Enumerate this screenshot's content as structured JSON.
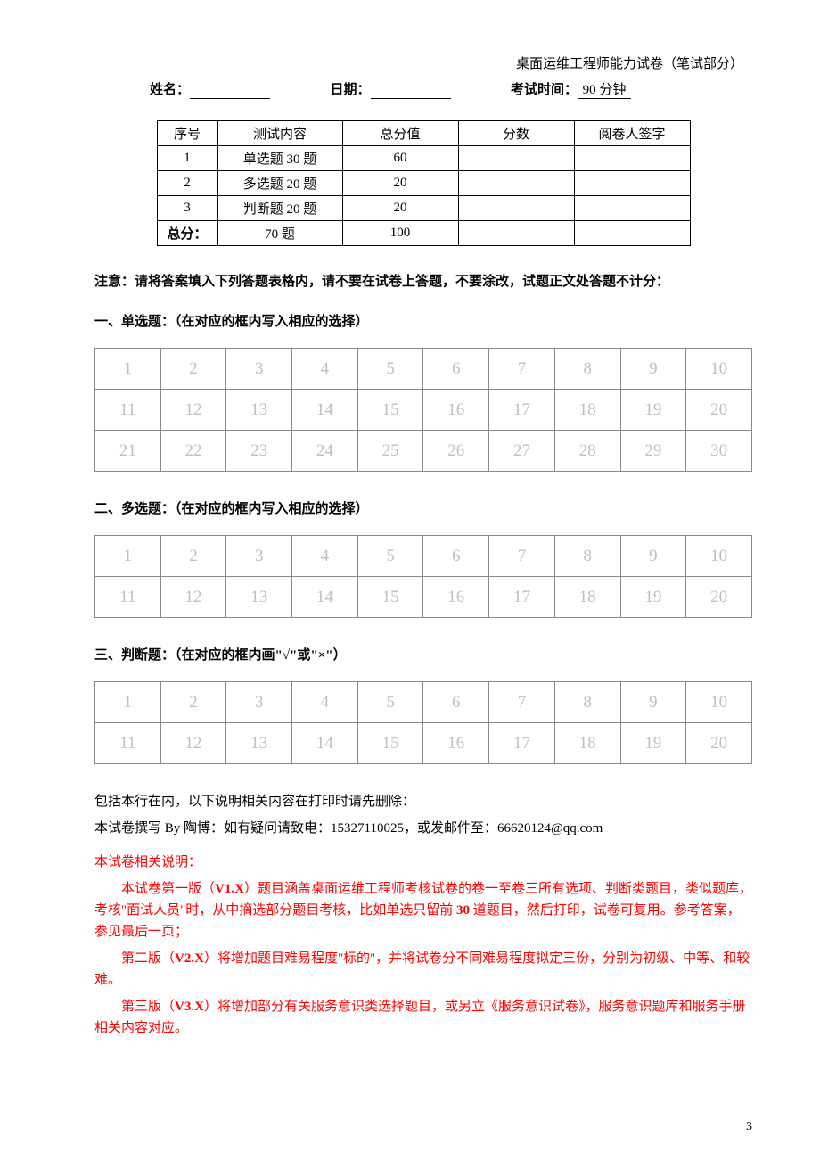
{
  "header": {
    "title": "桌面运维工程师能力试卷（笔试部分）",
    "name_label": "姓名：",
    "date_label": "日期：",
    "time_label": "考试时间：",
    "time_value": "90 分钟"
  },
  "score_table": {
    "headers": [
      "序号",
      "测试内容",
      "总分值",
      "分数",
      "阅卷人签字"
    ],
    "rows": [
      [
        "1",
        "单选题 30 题",
        "60",
        "",
        ""
      ],
      [
        "2",
        "多选题 20 题",
        "20",
        "",
        ""
      ],
      [
        "3",
        "判断题 20 题",
        "20",
        "",
        ""
      ]
    ],
    "total_row": [
      "总分：",
      "70 题",
      "100",
      "",
      ""
    ]
  },
  "notice": "注意：请将答案填入下列答题表格内，请不要在试卷上答题，不要涂改，试题正文处答题不计分：",
  "section1": {
    "title": "一、单选题：（在对应的框内写入相应的选择）",
    "cells": [
      "1",
      "2",
      "3",
      "4",
      "5",
      "6",
      "7",
      "8",
      "9",
      "10",
      "11",
      "12",
      "13",
      "14",
      "15",
      "16",
      "17",
      "18",
      "19",
      "20",
      "21",
      "22",
      "23",
      "24",
      "25",
      "26",
      "27",
      "28",
      "29",
      "30"
    ]
  },
  "section2": {
    "title": "二、多选题：（在对应的框内写入相应的选择）",
    "cells": [
      "1",
      "2",
      "3",
      "4",
      "5",
      "6",
      "7",
      "8",
      "9",
      "10",
      "11",
      "12",
      "13",
      "14",
      "15",
      "16",
      "17",
      "18",
      "19",
      "20"
    ]
  },
  "section3": {
    "title": "三、判断题：（在对应的框内画\"√\"或\"×\"）",
    "cells": [
      "1",
      "2",
      "3",
      "4",
      "5",
      "6",
      "7",
      "8",
      "9",
      "10",
      "11",
      "12",
      "13",
      "14",
      "15",
      "16",
      "17",
      "18",
      "19",
      "20"
    ]
  },
  "footer": {
    "line1": "包括本行在内，以下说明相关内容在打印时请先删除：",
    "line2": "本试卷撰写 By 陶博：如有疑问请致电：15327110025，或发邮件至：66620124@qq.com",
    "red_title": "本试卷相关说明：",
    "p1_pre": "本试卷第一版（",
    "p1_v": "V1.X",
    "p1_mid": "）题目涵盖桌面运维工程师考核试卷的卷一至卷三所有选项、判断类题目，类似题库，考核\"面试人员\"时，从中摘选部分题目考核，比如单选只留前 ",
    "p1_bold": "30",
    "p1_post": " 道题目，然后打印，试卷可复用。参考答案，参见最后一页；",
    "p2_pre": "第二版（",
    "p2_v": "V2.X",
    "p2_post": "）将增加题目难易程度\"标的\"，并将试卷分不同难易程度拟定三份，分别为初级、中等、和较难。",
    "p3_pre": "第三版（",
    "p3_v": "V3.X",
    "p3_post": "）将增加部分有关服务意识类选择题目，或另立《服务意识试卷》，服务意识题库和服务手册相关内容对应。"
  },
  "page_number": "3"
}
